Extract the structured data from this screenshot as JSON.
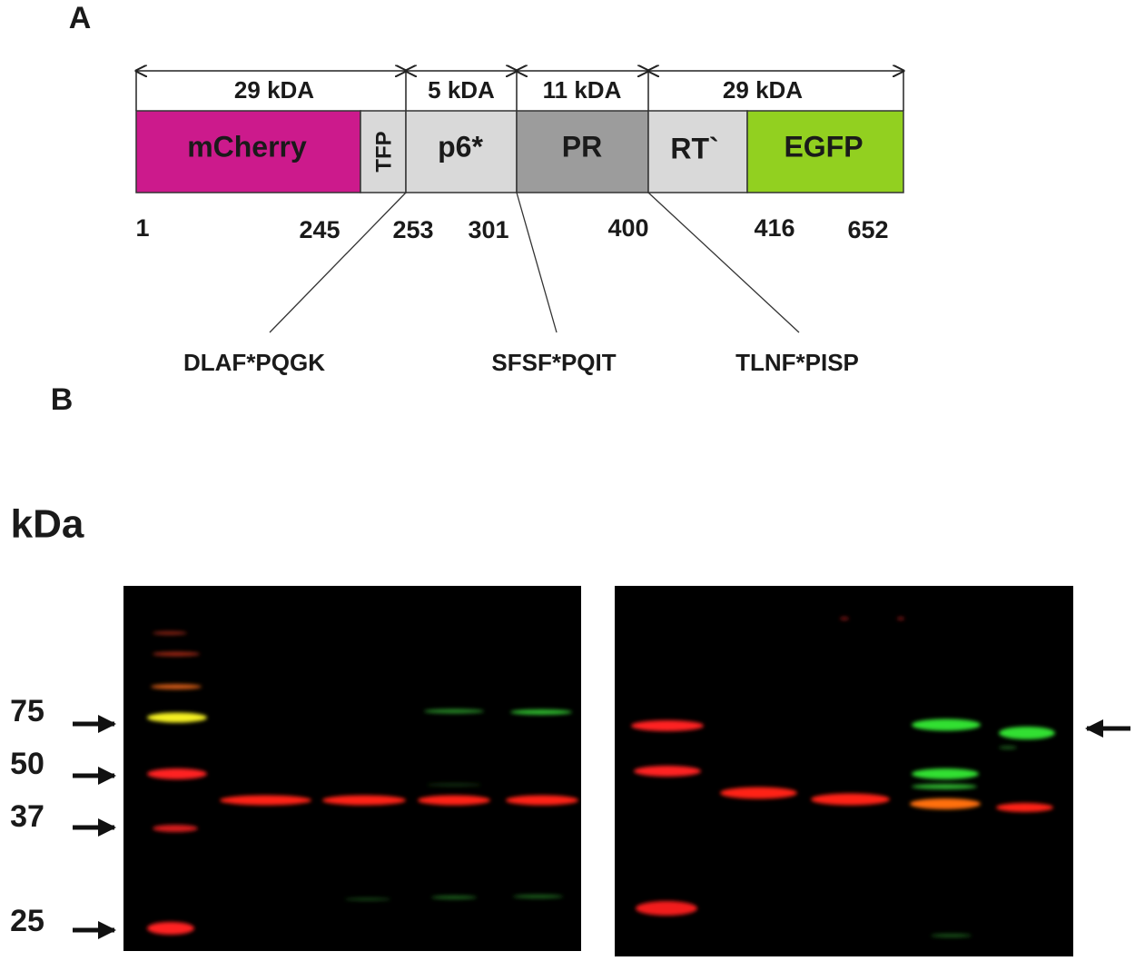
{
  "panel_a": {
    "label": "A",
    "segment_sizes": [
      "29 kDA",
      "5 kDA",
      "11 kDA",
      "29 kDA"
    ],
    "domains": [
      "mCherry",
      "TFP",
      "p6*",
      "PR",
      "RT`",
      "EGFP"
    ],
    "positions": [
      "1",
      "245",
      "253",
      "301",
      "400",
      "416",
      "652"
    ],
    "cleavage_sites": [
      "DLAF*PQGK",
      "SFSF*PQIT",
      "TLNF*PISP"
    ]
  },
  "panel_b": {
    "label": "B",
    "unit": "kDa",
    "markers": [
      "75",
      "50",
      "37",
      "25"
    ]
  }
}
